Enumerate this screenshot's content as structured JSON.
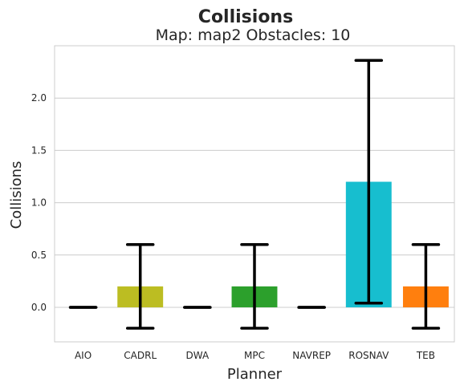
{
  "chart_data": {
    "type": "bar",
    "title": "Collisions",
    "subtitle": "Map: map2 Obstacles: 10",
    "xlabel": "Planner",
    "ylabel": "Collisions",
    "categories": [
      "AIO",
      "CADRL",
      "DWA",
      "MPC",
      "NAVREP",
      "ROSNAV",
      "TEB"
    ],
    "values": [
      0.0,
      0.2,
      0.0,
      0.2,
      0.0,
      1.2,
      0.2
    ],
    "error_low": [
      0.0,
      -0.2,
      0.0,
      -0.2,
      0.0,
      0.04,
      -0.2
    ],
    "error_high": [
      0.0,
      0.6,
      0.0,
      0.6,
      0.0,
      2.36,
      0.6
    ],
    "colors": [
      "#1f77b4",
      "#bcbd22",
      "#8c564b",
      "#2ca02c",
      "#9467bd",
      "#17becf",
      "#ff7f0e"
    ],
    "yticks": [
      0.0,
      0.5,
      1.0,
      1.5,
      2.0
    ],
    "ytick_labels": [
      "0.0",
      "0.5",
      "1.0",
      "1.5",
      "2.0"
    ],
    "ylim": [
      -0.33,
      2.5
    ],
    "grid": "horizontal",
    "legend": "none"
  }
}
